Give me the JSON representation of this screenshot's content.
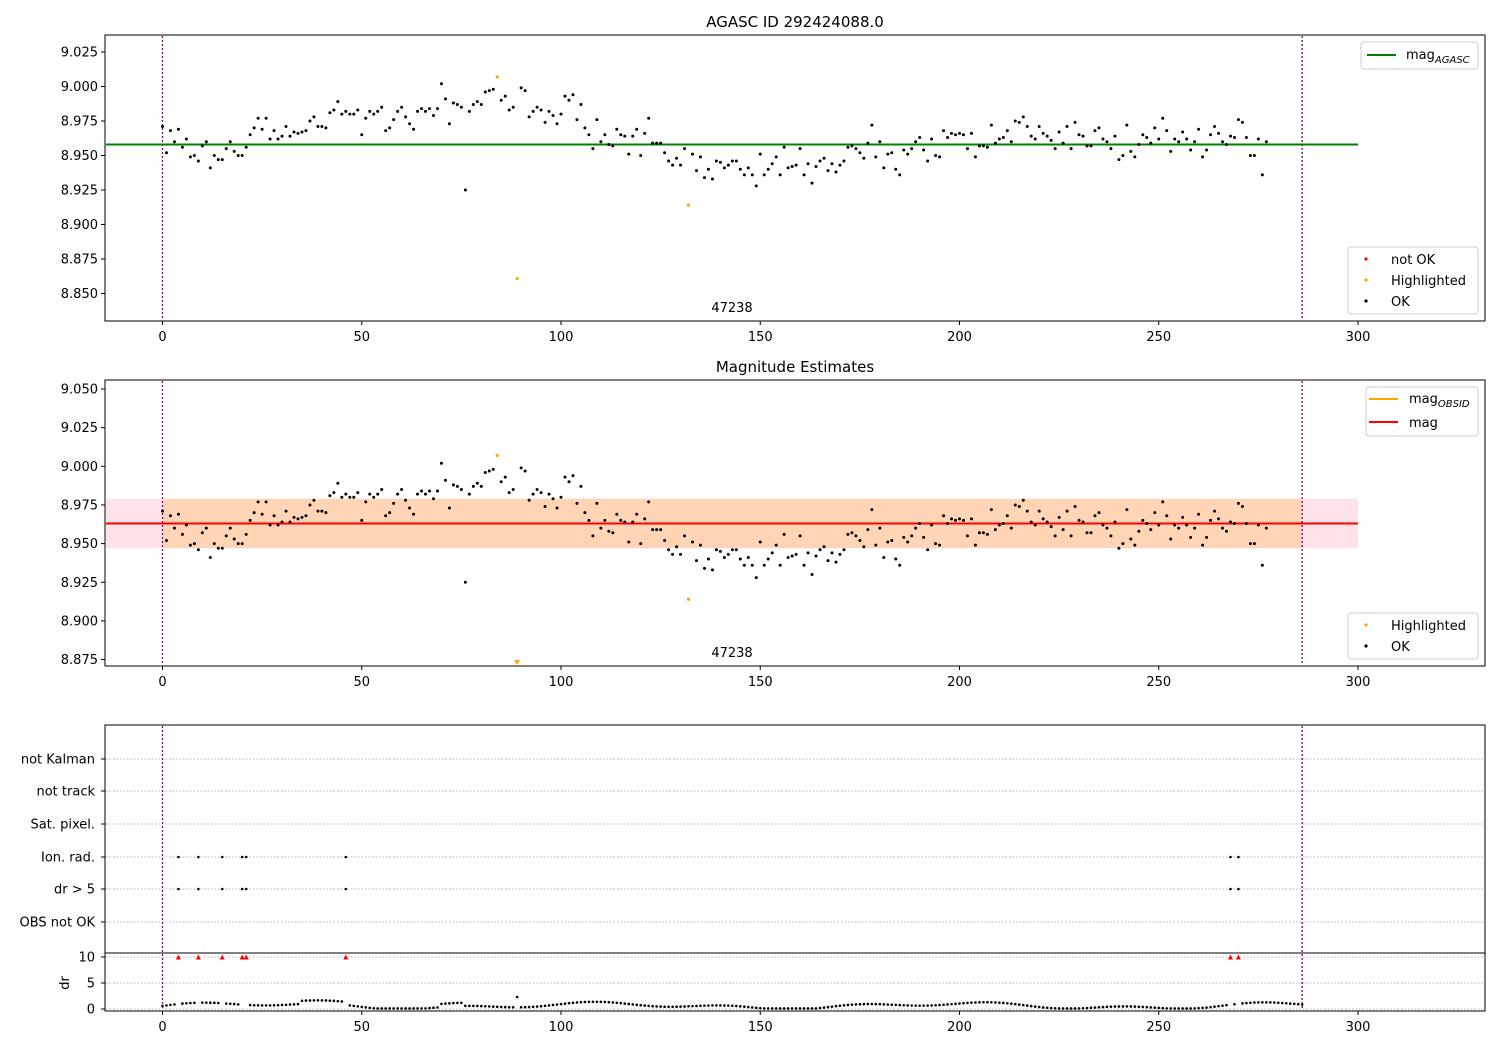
{
  "figure": {
    "panel1_title": "AGASC ID 292424088.0",
    "panel2_title": "Magnitude Estimates",
    "obsid_label": "47238",
    "vline_x": [
      0,
      286
    ]
  },
  "colors": {
    "ok": "#000000",
    "not_ok": "#ff0000",
    "highlighted": "#ffa500",
    "mag_agasc": "#008000",
    "mag_obsid": "#ffa500",
    "mag": "#ff0000",
    "band": "#ffc0cb",
    "vline": "#800080",
    "grid": "#b0b0b0"
  },
  "chart_data": [
    {
      "type": "scatter",
      "title": "AGASC ID 292424088.0",
      "xlim": [
        -14,
        333
      ],
      "ylim": [
        8.833,
        9.036
      ],
      "xticks": [
        0,
        50,
        100,
        150,
        200,
        250,
        300
      ],
      "yticks": [
        8.85,
        8.875,
        8.9,
        8.925,
        8.95,
        8.975,
        9.0,
        9.025
      ],
      "ytick_labels": [
        "8.850",
        "8.875",
        "8.900",
        "8.925",
        "8.950",
        "8.975",
        "9.000",
        "9.025"
      ],
      "hlines": [
        {
          "name": "mag_AGASC",
          "y": 8.958,
          "x": [
            -14,
            300
          ]
        }
      ],
      "legend_upper": [
        {
          "label": "mag",
          "sub": "AGASC"
        }
      ],
      "legend_lower": [
        "not OK",
        "Highlighted",
        "OK"
      ],
      "highlighted": [
        {
          "x": 84,
          "y": 9.007
        },
        {
          "x": 89,
          "y": 8.861
        },
        {
          "x": 132,
          "y": 8.914
        }
      ],
      "annotation": "47238",
      "legend_position": "upper right / lower right"
    },
    {
      "type": "scatter",
      "title": "Magnitude Estimates",
      "xlim": [
        -14,
        333
      ],
      "ylim": [
        8.871,
        9.054
      ],
      "xticks": [
        0,
        50,
        100,
        150,
        200,
        250,
        300
      ],
      "yticks": [
        8.875,
        8.9,
        8.925,
        8.95,
        8.975,
        9.0,
        9.025,
        9.05
      ],
      "ytick_labels": [
        "8.875",
        "8.900",
        "8.925",
        "8.950",
        "8.975",
        "9.000",
        "9.025",
        "9.050"
      ],
      "mag": 8.963,
      "band": [
        8.947,
        8.979
      ],
      "obsid_band": [
        8.947,
        8.979
      ],
      "legend_upper": [
        {
          "label": "mag",
          "sub": "OBSID"
        },
        {
          "label": "mag",
          "sub": ""
        }
      ],
      "legend_lower": [
        "Highlighted",
        "OK"
      ],
      "highlighted": [
        {
          "x": 84,
          "y": 9.007
        },
        {
          "x": 132,
          "y": 8.914
        }
      ],
      "highlighted_clipped": [
        {
          "x": 89,
          "y": 8.861
        }
      ],
      "annotation": "47238"
    },
    {
      "type": "scatter",
      "flags_categories": [
        "not Kalman",
        "not track",
        "Sat. pixel.",
        "Ion. rad.",
        "dr > 5",
        "OBS not OK"
      ],
      "flag_points": {
        "Ion. rad.": [
          4,
          9,
          15,
          20,
          21,
          46,
          268,
          270
        ],
        "dr > 5": [
          4,
          9,
          15,
          20,
          21,
          46,
          268,
          270
        ]
      },
      "dr_ylabel": "dr",
      "dr_yticks": [
        0,
        5,
        10
      ],
      "dr_ylim": [
        0,
        10
      ],
      "dr_clipped_x": [
        4,
        9,
        15,
        20,
        21,
        46,
        268,
        270
      ],
      "xticks": [
        0,
        50,
        100,
        150,
        200,
        250,
        300
      ],
      "xlim": [
        -14,
        333
      ]
    }
  ]
}
